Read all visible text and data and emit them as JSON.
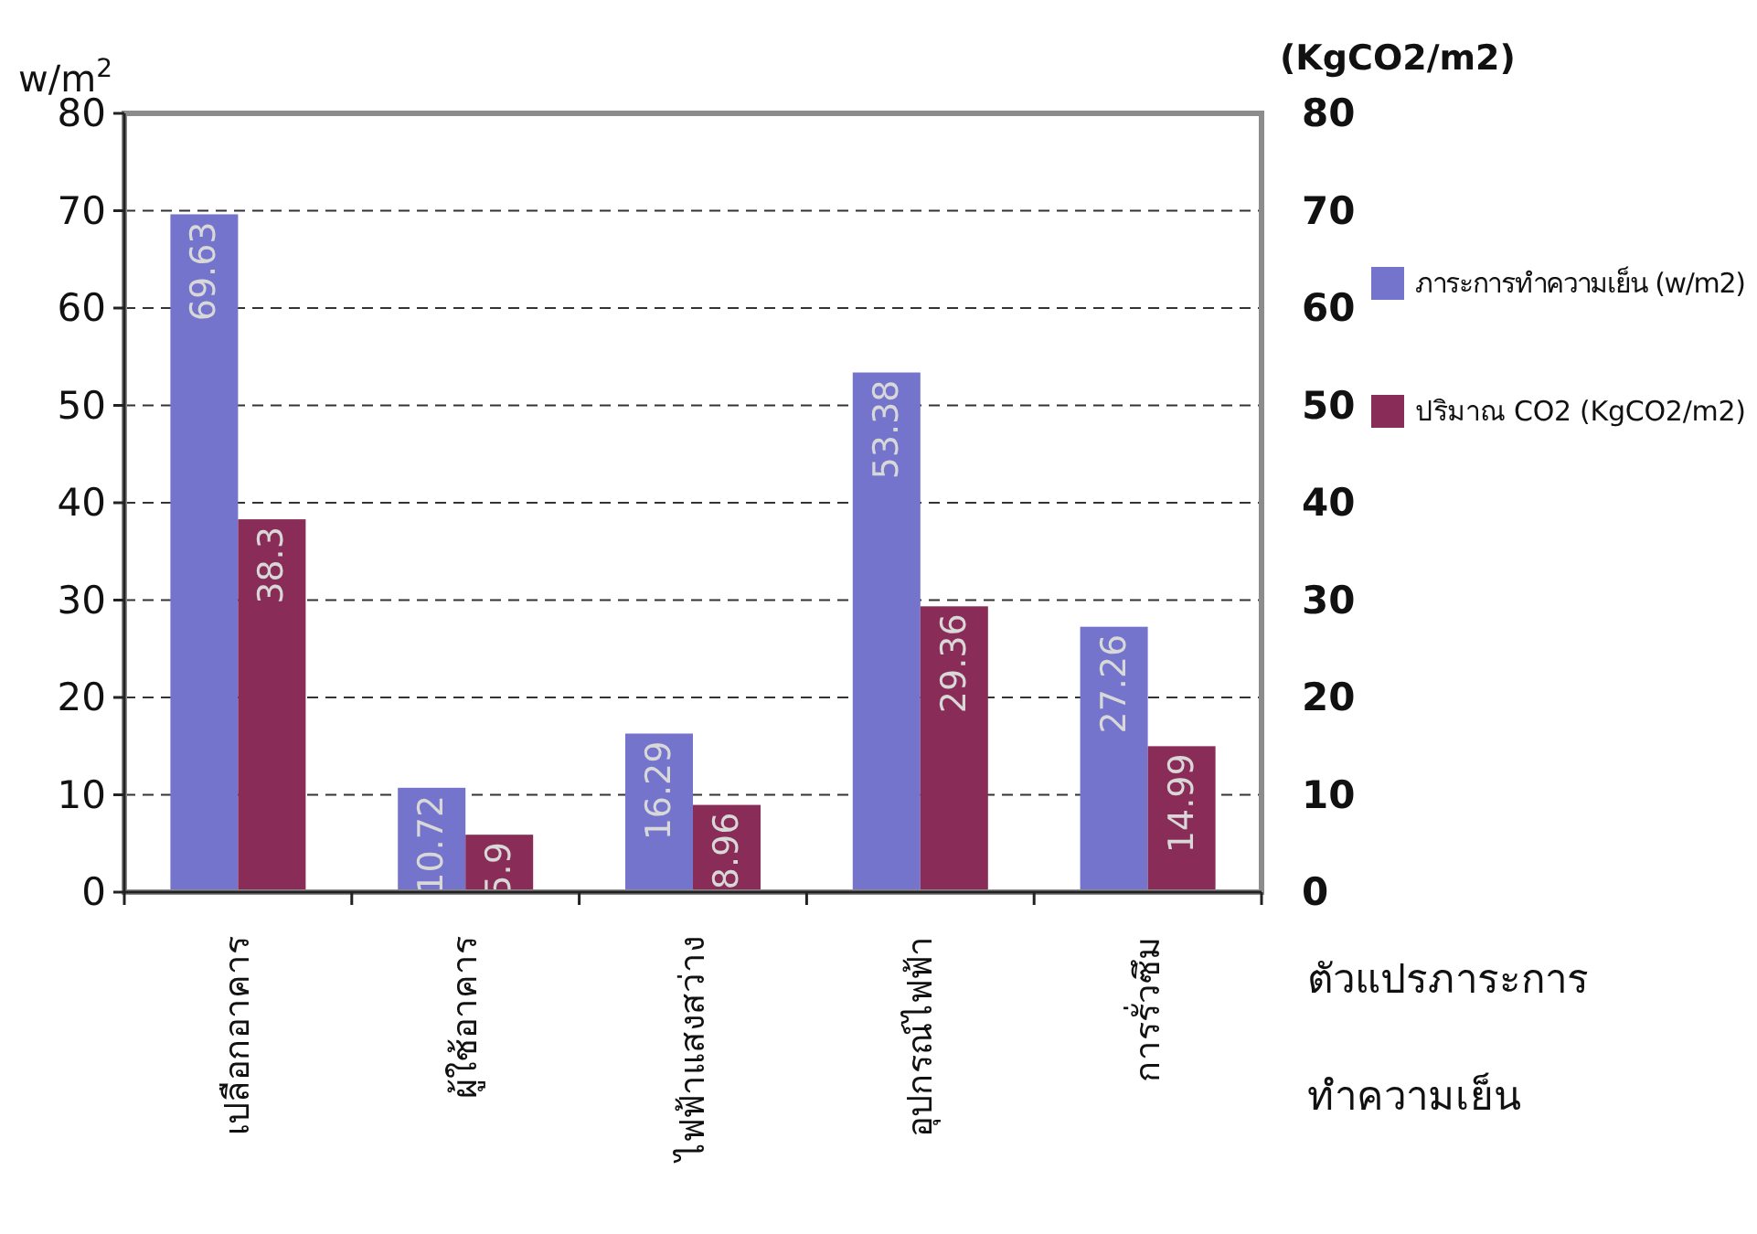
{
  "chart_data": {
    "type": "bar",
    "xlabel": "ตัวแปรภาระการทำความเย็น",
    "ylabel": "w/m$^{2}$",
    "y2label": "(KgCO2/m2)",
    "categories": [
      "เปลือกอาคาร",
      "ผู้ใช้อาคาร",
      "ไฟฟ้าแสงสว่าง",
      "อุปกรณ์ไฟฟ้า",
      "การรั่วซึม"
    ],
    "series": [
      {
        "name": "ภาระการทำความเย็น (w/m2)",
        "color": "#7474cc",
        "values": [
          69.63,
          10.72,
          16.29,
          53.38,
          27.26
        ]
      },
      {
        "name": "ปริมาณ CO2 (KgCO2/m2)",
        "color": "#8a2c58",
        "axis": "y2",
        "values": [
          38.3,
          5.9,
          8.96,
          29.36,
          14.99
        ]
      }
    ],
    "ylim": [
      0,
      80
    ],
    "yticks": [
      0,
      10,
      20,
      30,
      40,
      50,
      60,
      70,
      80
    ],
    "y2lim": [
      0,
      80
    ],
    "y2ticks": [
      0,
      10,
      20,
      30,
      40,
      50,
      60,
      70,
      80
    ],
    "grid": "y",
    "legend": "right",
    "data_labels": true
  }
}
